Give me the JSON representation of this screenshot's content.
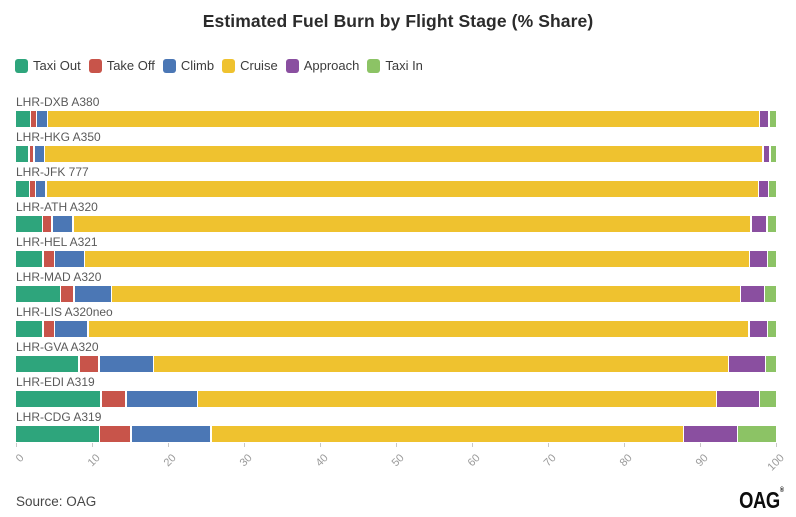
{
  "title": "Estimated Fuel Burn by Flight Stage (% Share)",
  "source": "Source: OAG",
  "brand": "OAG",
  "brand_reg": "®",
  "colors": {
    "taxi_out": "#2EA57C",
    "take_off": "#C8544A",
    "climb": "#4B77B5",
    "cruise": "#EFC22F",
    "approach": "#8A4FA0",
    "taxi_in": "#8CC365"
  },
  "chart_data": {
    "type": "bar",
    "orientation": "horizontal",
    "stacked": true,
    "title": "Estimated Fuel Burn by Flight Stage (% Share)",
    "xlabel": "",
    "ylabel": "",
    "xlim": [
      0,
      100
    ],
    "xticks": [
      0,
      10,
      20,
      30,
      40,
      50,
      60,
      70,
      80,
      90,
      100
    ],
    "grid": false,
    "legend_position": "top-left",
    "categories": [
      "LHR-DXB A380",
      "LHR-HKG A350",
      "LHR-JFK 777",
      "LHR-ATH A320",
      "LHR-HEL A321",
      "LHR-MAD A320",
      "LHR-LIS A320neo",
      "LHR-GVA A320",
      "LHR-EDI A319",
      "LHR-CDG A319"
    ],
    "series": [
      {
        "name": "Taxi Out",
        "color": "#2EA57C",
        "values": [
          1.8,
          1.6,
          1.7,
          3.4,
          3.5,
          5.8,
          3.5,
          8.3,
          11.2,
          11.0
        ]
      },
      {
        "name": "Take Off",
        "color": "#C8544A",
        "values": [
          0.6,
          0.5,
          0.6,
          1.1,
          1.3,
          1.6,
          1.3,
          2.4,
          3.1,
          4.0
        ]
      },
      {
        "name": "Climb",
        "color": "#4B77B5",
        "values": [
          1.3,
          1.2,
          1.2,
          2.6,
          3.8,
          4.8,
          4.3,
          7.1,
          9.3,
          10.4
        ]
      },
      {
        "name": "Cruise",
        "color": "#EFC22F",
        "values": [
          94.4,
          95.3,
          94.5,
          89.9,
          88.2,
          83.4,
          87.6,
          76.2,
          68.8,
          62.6
        ]
      },
      {
        "name": "Approach",
        "color": "#8A4FA0",
        "values": [
          1.1,
          0.7,
          1.1,
          1.9,
          2.2,
          3.0,
          2.3,
          4.7,
          5.5,
          7.0
        ]
      },
      {
        "name": "Taxi In",
        "color": "#8CC365",
        "values": [
          0.8,
          0.7,
          0.9,
          1.1,
          1.0,
          1.4,
          1.0,
          1.3,
          2.1,
          5.0
        ]
      }
    ]
  }
}
